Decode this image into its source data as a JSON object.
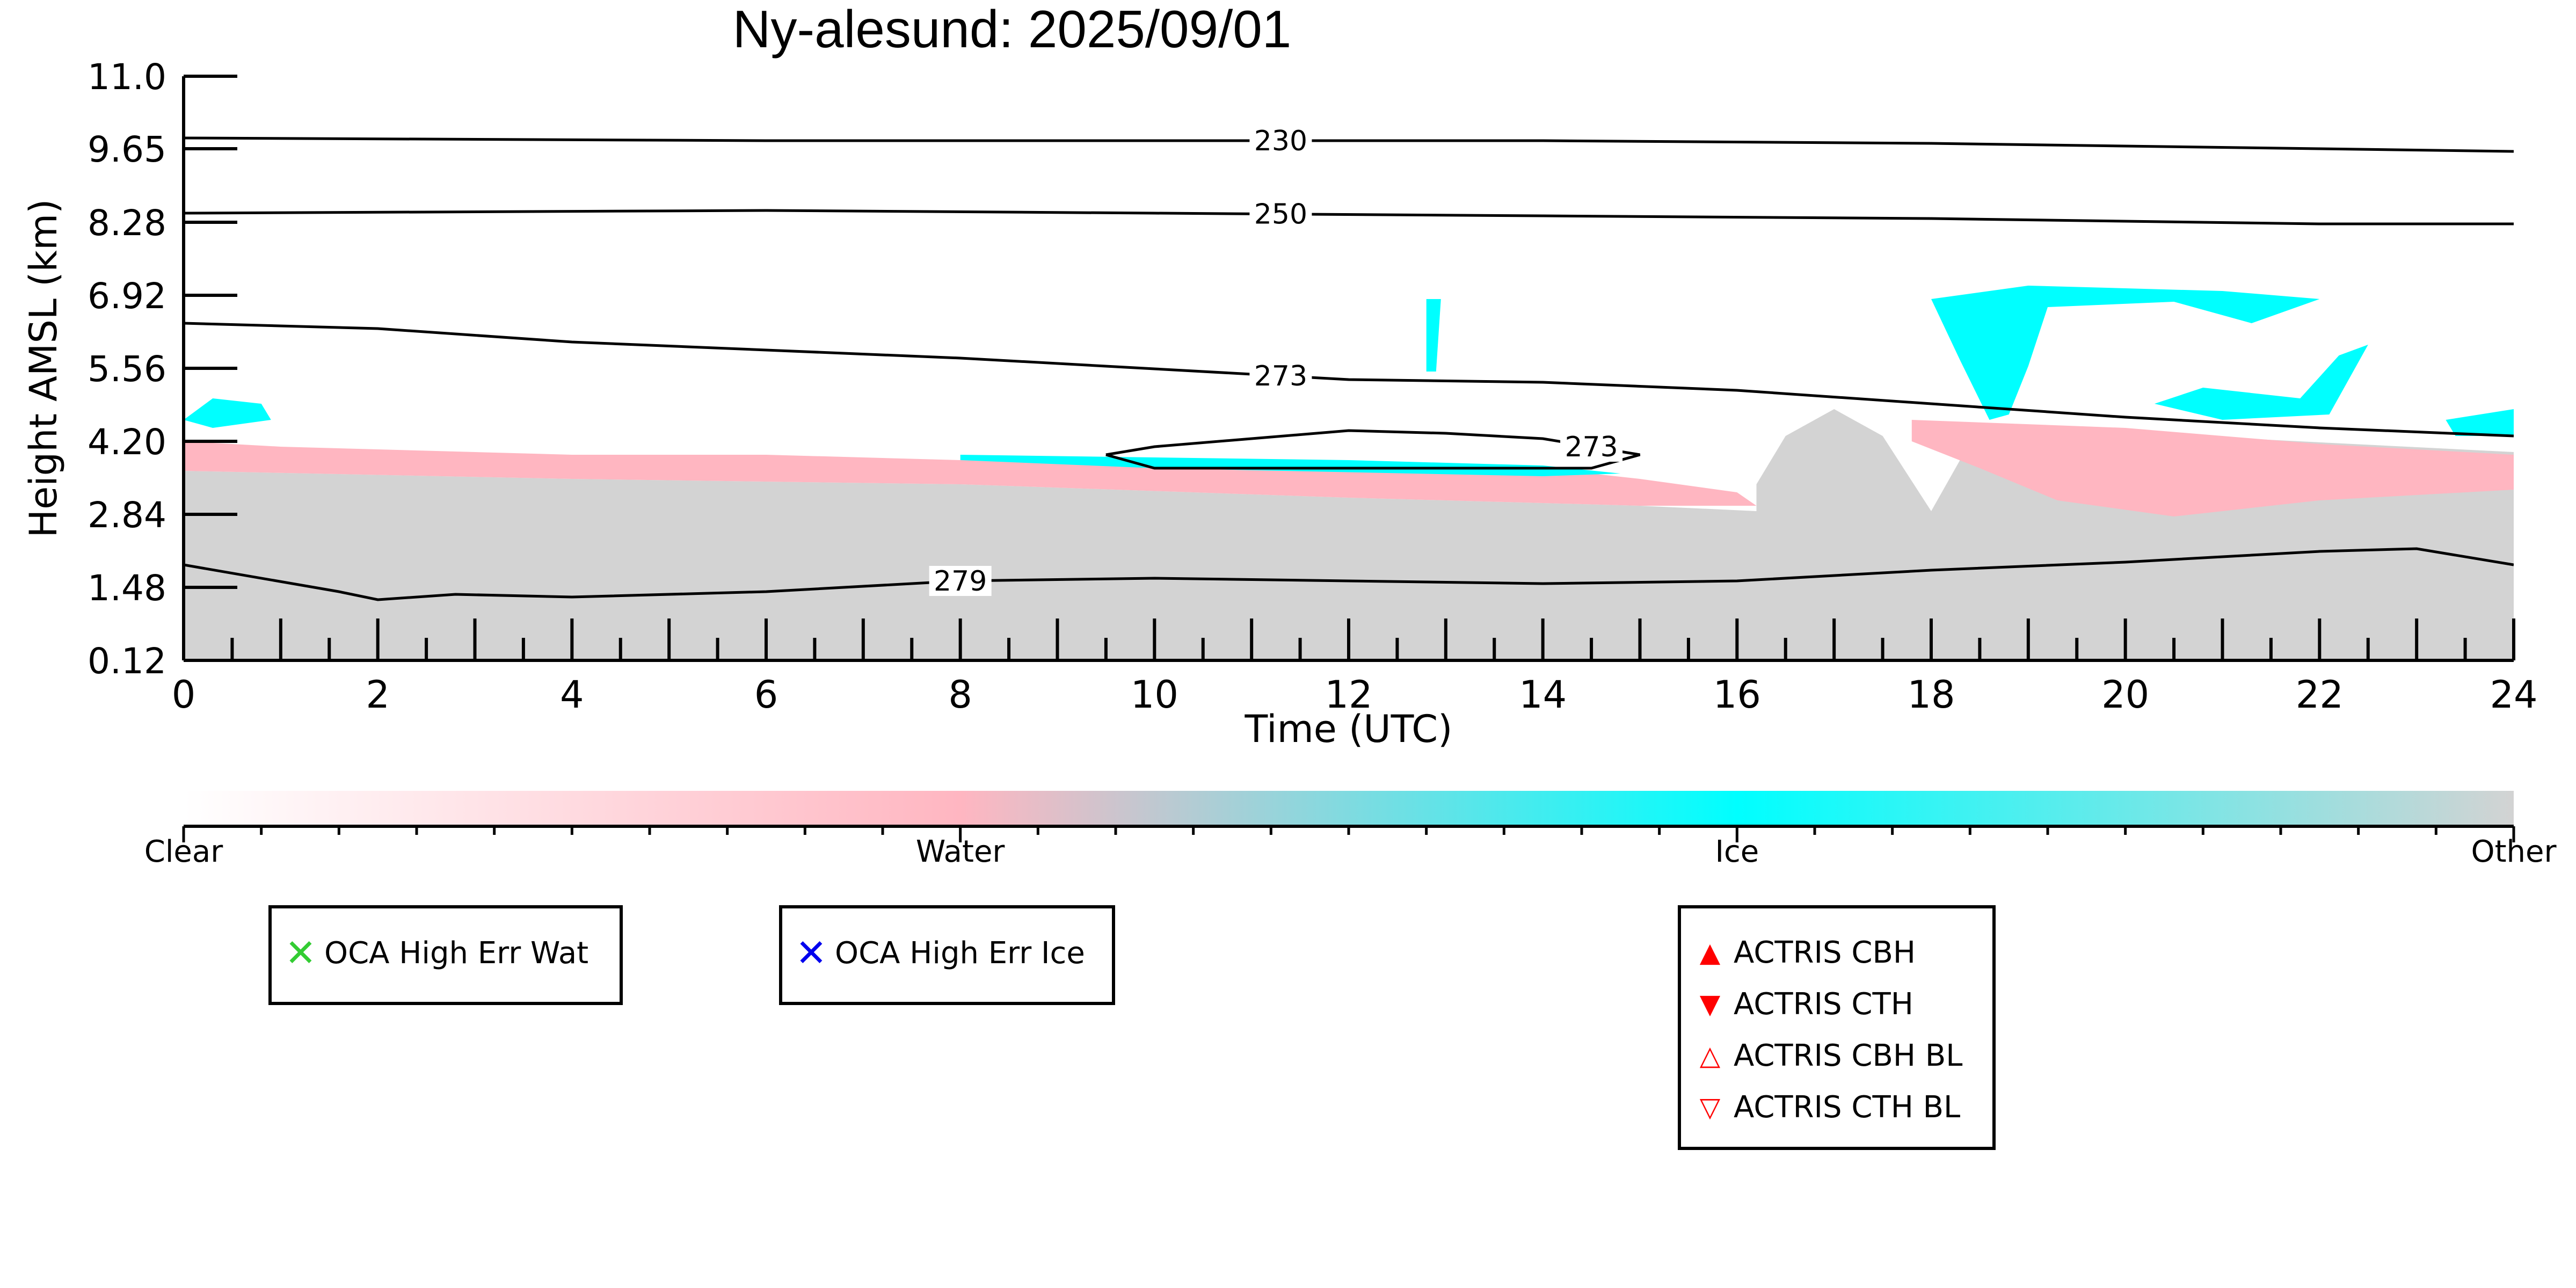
{
  "chart_data": {
    "type": "heatmap",
    "title": "Ny-alesund: 2025/09/01",
    "xlabel": "Time (UTC)",
    "ylabel": "Height AMSL (km)",
    "xlim": [
      0,
      24
    ],
    "ylim": [
      0.12,
      11.0
    ],
    "x_ticks": [
      "0",
      "2",
      "4",
      "6",
      "8",
      "10",
      "12",
      "14",
      "16",
      "18",
      "20",
      "22",
      "24"
    ],
    "y_ticks": [
      "0.12",
      "1.48",
      "2.84",
      "4.20",
      "5.56",
      "6.92",
      "8.28",
      "9.65",
      "11.0"
    ],
    "grid": false,
    "temperature_contours": [
      {
        "label": "230",
        "points": [
          [
            0,
            9.85
          ],
          [
            6,
            9.8
          ],
          [
            10,
            9.8
          ],
          [
            14,
            9.8
          ],
          [
            18,
            9.75
          ],
          [
            22,
            9.65
          ],
          [
            24,
            9.6
          ]
        ]
      },
      {
        "label": "250",
        "points": [
          [
            0,
            8.45
          ],
          [
            6,
            8.5
          ],
          [
            10,
            8.45
          ],
          [
            14,
            8.4
          ],
          [
            18,
            8.35
          ],
          [
            22,
            8.25
          ],
          [
            24,
            8.25
          ]
        ]
      },
      {
        "label": "273",
        "points": [
          [
            0,
            6.4
          ],
          [
            2,
            6.3
          ],
          [
            4,
            6.05
          ],
          [
            6,
            5.9
          ],
          [
            8,
            5.75
          ],
          [
            10,
            5.55
          ],
          [
            12,
            5.35
          ],
          [
            14,
            5.3
          ],
          [
            16,
            5.15
          ],
          [
            18,
            4.9
          ],
          [
            20,
            4.65
          ],
          [
            22,
            4.45
          ],
          [
            24,
            4.3
          ]
        ]
      },
      {
        "label": "273",
        "points": [
          [
            9.5,
            3.95
          ],
          [
            10,
            4.1
          ],
          [
            11,
            4.25
          ],
          [
            12,
            4.4
          ],
          [
            13,
            4.35
          ],
          [
            14,
            4.25
          ],
          [
            15,
            3.95
          ],
          [
            14.5,
            3.7
          ],
          [
            13,
            3.7
          ],
          [
            11,
            3.7
          ],
          [
            10,
            3.7
          ],
          [
            9.5,
            3.95
          ]
        ]
      },
      {
        "label": "279",
        "points": [
          [
            0,
            1.9
          ],
          [
            1.6,
            1.4
          ],
          [
            2,
            1.25
          ],
          [
            2.8,
            1.35
          ],
          [
            4,
            1.3
          ],
          [
            6,
            1.4
          ],
          [
            8,
            1.6
          ],
          [
            10,
            1.65
          ],
          [
            12,
            1.6
          ],
          [
            14,
            1.55
          ],
          [
            16,
            1.6
          ],
          [
            18,
            1.8
          ],
          [
            20,
            1.95
          ],
          [
            22,
            2.15
          ],
          [
            23,
            2.2
          ],
          [
            24,
            1.9
          ]
        ]
      }
    ],
    "mask_classes": [
      {
        "name": "Clear",
        "color": "#FFFFFF"
      },
      {
        "name": "Water",
        "color": "#FFB6C1"
      },
      {
        "name": "Ice",
        "color": "#00FFFF"
      },
      {
        "name": "Other",
        "color": "#D3D3D3"
      }
    ],
    "regions": [
      {
        "class": "Other",
        "points": [
          [
            0,
            0.12
          ],
          [
            0,
            3.65
          ],
          [
            4,
            3.5
          ],
          [
            8,
            3.4
          ],
          [
            12,
            3.15
          ],
          [
            15,
            3.0
          ],
          [
            16.2,
            2.9
          ],
          [
            16.4,
            0.12
          ]
        ]
      },
      {
        "class": "Other",
        "points": [
          [
            16.2,
            0.12
          ],
          [
            16.2,
            3.4
          ],
          [
            16.5,
            4.3
          ],
          [
            17.0,
            4.8
          ],
          [
            17.5,
            4.3
          ],
          [
            18.0,
            2.9
          ],
          [
            18.5,
            4.5
          ],
          [
            24,
            4.0
          ],
          [
            24,
            0.12
          ]
        ]
      },
      {
        "class": "Water",
        "points": [
          [
            0,
            3.65
          ],
          [
            0,
            4.2
          ],
          [
            1,
            4.1
          ],
          [
            4,
            3.95
          ],
          [
            6,
            3.95
          ],
          [
            8,
            3.85
          ],
          [
            10,
            3.8
          ],
          [
            14,
            3.7
          ],
          [
            15,
            3.5
          ],
          [
            16,
            3.25
          ],
          [
            16.2,
            3.0
          ],
          [
            15,
            3.0
          ],
          [
            12,
            3.15
          ],
          [
            8,
            3.4
          ],
          [
            4,
            3.5
          ]
        ]
      },
      {
        "class": "Water",
        "points": [
          [
            17.8,
            4.6
          ],
          [
            20,
            4.45
          ],
          [
            22,
            4.15
          ],
          [
            24,
            3.95
          ],
          [
            24,
            3.3
          ],
          [
            22,
            3.1
          ],
          [
            20.5,
            2.8
          ],
          [
            19.3,
            3.1
          ],
          [
            18.5,
            3.7
          ],
          [
            17.8,
            4.2
          ]
        ]
      },
      {
        "class": "Ice",
        "points": [
          [
            0,
            4.6
          ],
          [
            0.3,
            5.0
          ],
          [
            0.8,
            4.9
          ],
          [
            0.9,
            4.6
          ],
          [
            0.3,
            4.45
          ]
        ]
      },
      {
        "class": "Ice",
        "points": [
          [
            8,
            3.95
          ],
          [
            10,
            3.9
          ],
          [
            12,
            3.85
          ],
          [
            14,
            3.75
          ],
          [
            14.8,
            3.6
          ],
          [
            14,
            3.55
          ],
          [
            10,
            3.7
          ],
          [
            8,
            3.85
          ]
        ]
      },
      {
        "class": "Ice",
        "points": [
          [
            12.8,
            6.85
          ],
          [
            12.95,
            6.85
          ],
          [
            12.9,
            5.5
          ],
          [
            12.8,
            5.5
          ]
        ]
      },
      {
        "class": "Ice",
        "points": [
          [
            18.0,
            6.85
          ],
          [
            19.0,
            7.1
          ],
          [
            21,
            7.0
          ],
          [
            22,
            6.85
          ],
          [
            21.3,
            6.4
          ],
          [
            20.5,
            6.8
          ],
          [
            19.2,
            6.7
          ],
          [
            19.0,
            5.6
          ],
          [
            18.8,
            4.7
          ],
          [
            18.6,
            4.6
          ],
          [
            18.3,
            5.7
          ]
        ]
      },
      {
        "class": "Ice",
        "points": [
          [
            20.3,
            4.9
          ],
          [
            20.8,
            5.2
          ],
          [
            21.8,
            5.0
          ],
          [
            22.2,
            5.8
          ],
          [
            22.5,
            6.0
          ],
          [
            22.1,
            4.7
          ],
          [
            21,
            4.6
          ]
        ]
      },
      {
        "class": "Ice",
        "points": [
          [
            23.3,
            4.6
          ],
          [
            24,
            4.8
          ],
          [
            24,
            4.3
          ],
          [
            23.4,
            4.3
          ]
        ]
      }
    ],
    "legend_entries": [
      {
        "marker": "x",
        "color": "#33CC33",
        "label": "OCA High Err Wat"
      },
      {
        "marker": "x",
        "color": "#0000EE",
        "label": "OCA High Err Ice"
      },
      {
        "marker": "triangle-up-filled",
        "color": "#FF0000",
        "label": "ACTRIS CBH"
      },
      {
        "marker": "triangle-down-filled",
        "color": "#FF0000",
        "label": "ACTRIS CTH"
      },
      {
        "marker": "triangle-up-open",
        "color": "#FF0000",
        "label": "ACTRIS CBH BL"
      },
      {
        "marker": "triangle-down-open",
        "color": "#FF0000",
        "label": "ACTRIS CTH BL"
      }
    ]
  }
}
